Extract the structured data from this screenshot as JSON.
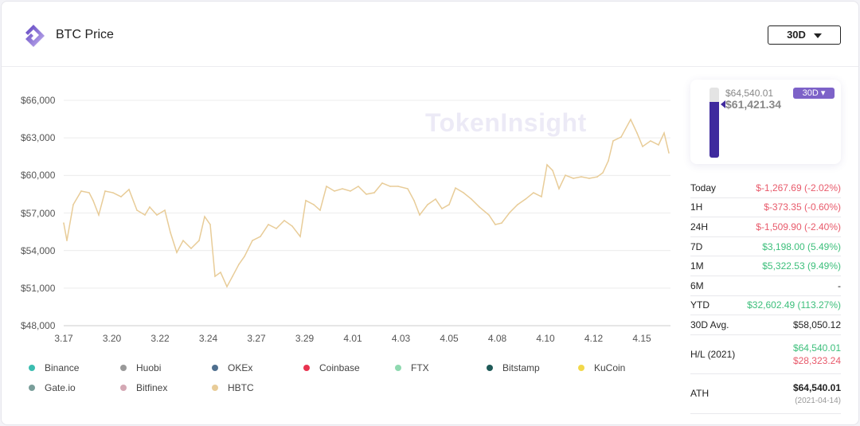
{
  "header": {
    "title": "BTC Price",
    "range": "30D",
    "logo": "tokeninsight-logo"
  },
  "watermark": "TokenInsight",
  "chart_data": {
    "type": "line",
    "title": "",
    "ylim": [
      48000,
      66000
    ],
    "y_ticks": [
      "$66,000",
      "$63,000",
      "$60,000",
      "$57,000",
      "$54,000",
      "$51,000",
      "$48,000"
    ],
    "x_ticks": [
      "3.17",
      "3.20",
      "3.22",
      "3.24",
      "3.27",
      "3.29",
      "4.01",
      "4.03",
      "4.05",
      "4.08",
      "4.10",
      "4.12",
      "4.15"
    ],
    "grid": "horizontal",
    "legend_position": "bottom",
    "series": [
      {
        "name": "HBTC",
        "color": "#e8cc98",
        "points": [
          [
            "03-17 00",
            56200
          ],
          [
            "03-17 04",
            54800
          ],
          [
            "03-17 12",
            57670
          ],
          [
            "03-17 22",
            58750
          ],
          [
            "03-18 08",
            58620
          ],
          [
            "03-18 13",
            57990
          ],
          [
            "03-18 20",
            56840
          ],
          [
            "03-19 04",
            58750
          ],
          [
            "03-19 14",
            58620
          ],
          [
            "03-20 00",
            58300
          ],
          [
            "03-20 10",
            58880
          ],
          [
            "03-20 20",
            57220
          ],
          [
            "03-21 06",
            56840
          ],
          [
            "03-21 12",
            57480
          ],
          [
            "03-21 21",
            56840
          ],
          [
            "03-22 07",
            57220
          ],
          [
            "03-22 14",
            55440
          ],
          [
            "03-22 22",
            53850
          ],
          [
            "03-23 06",
            54800
          ],
          [
            "03-23 16",
            54170
          ],
          [
            "03-24 02",
            54800
          ],
          [
            "03-24 09",
            56710
          ],
          [
            "03-24 16",
            56080
          ],
          [
            "03-24 22",
            51940
          ],
          [
            "03-25 05",
            52260
          ],
          [
            "03-25 13",
            51120
          ],
          [
            "03-25 20",
            51940
          ],
          [
            "03-26 04",
            52900
          ],
          [
            "03-26 11",
            53530
          ],
          [
            "03-26 21",
            54800
          ],
          [
            "03-27 07",
            55120
          ],
          [
            "03-27 17",
            56080
          ],
          [
            "03-28 03",
            55760
          ],
          [
            "03-28 13",
            56400
          ],
          [
            "03-28 23",
            55950
          ],
          [
            "03-29 09",
            55120
          ],
          [
            "03-29 16",
            58000
          ],
          [
            "03-30 02",
            57670
          ],
          [
            "03-30 10",
            57220
          ],
          [
            "03-30 18",
            59130
          ],
          [
            "03-31 04",
            58750
          ],
          [
            "03-31 14",
            58940
          ],
          [
            "04-01 00",
            58750
          ],
          [
            "04-01 10",
            59130
          ],
          [
            "04-01 20",
            58500
          ],
          [
            "04-02 06",
            58620
          ],
          [
            "04-02 16",
            59390
          ],
          [
            "04-03 02",
            59130
          ],
          [
            "04-03 12",
            59130
          ],
          [
            "04-04 00",
            58940
          ],
          [
            "04-04 08",
            57990
          ],
          [
            "04-04 15",
            56840
          ],
          [
            "04-05 01",
            57670
          ],
          [
            "04-05 11",
            58110
          ],
          [
            "04-05 19",
            57350
          ],
          [
            "04-06 04",
            57670
          ],
          [
            "04-06 12",
            59000
          ],
          [
            "04-06 22",
            58620
          ],
          [
            "04-07 08",
            58110
          ],
          [
            "04-07 18",
            57480
          ],
          [
            "04-08 06",
            56840
          ],
          [
            "04-08 14",
            56080
          ],
          [
            "04-08 22",
            56200
          ],
          [
            "04-09 08",
            57030
          ],
          [
            "04-09 18",
            57670
          ],
          [
            "04-10 04",
            58110
          ],
          [
            "04-10 14",
            58620
          ],
          [
            "04-11 00",
            58300
          ],
          [
            "04-11 07",
            60850
          ],
          [
            "04-11 14",
            60400
          ],
          [
            "04-11 22",
            58940
          ],
          [
            "04-12 06",
            60020
          ],
          [
            "04-12 16",
            59770
          ],
          [
            "04-13 02",
            59890
          ],
          [
            "04-13 12",
            59770
          ],
          [
            "04-13 22",
            59890
          ],
          [
            "04-14 05",
            60210
          ],
          [
            "04-14 12",
            61170
          ],
          [
            "04-14 18",
            62760
          ],
          [
            "04-15 04",
            63070
          ],
          [
            "04-15 16",
            64470
          ],
          [
            "04-16 00",
            63390
          ],
          [
            "04-16 07",
            62310
          ],
          [
            "04-16 17",
            62760
          ],
          [
            "04-17 03",
            62440
          ],
          [
            "04-17 10",
            63390
          ],
          [
            "04-17 16",
            61800
          ]
        ]
      }
    ]
  },
  "legend": [
    {
      "label": "Binance",
      "color": "#3bbdb0"
    },
    {
      "label": "Huobi",
      "color": "#999999"
    },
    {
      "label": "OKEx",
      "color": "#4f6f8f"
    },
    {
      "label": "Coinbase",
      "color": "#e8334f"
    },
    {
      "label": "FTX",
      "color": "#8fd9b0"
    },
    {
      "label": "Bitstamp",
      "color": "#1f5a58"
    },
    {
      "label": "KuCoin",
      "color": "#f2d84a"
    },
    {
      "label": "Gate.io",
      "color": "#7a9e9a"
    },
    {
      "label": "Bitfinex",
      "color": "#d4a8b4"
    },
    {
      "label": "HBTC",
      "color": "#e8cc98"
    }
  ],
  "gauge": {
    "max": "$64,540.01",
    "current": "$61,421.34",
    "range": "30D",
    "fill_fraction": 0.8,
    "color": "#3f2a9e"
  },
  "stats": [
    {
      "label": "Today",
      "value": "$-1,267.69 (-2.02%)",
      "tone": "red"
    },
    {
      "label": "1H",
      "value": "$-373.35 (-0.60%)",
      "tone": "red"
    },
    {
      "label": "24H",
      "value": "$-1,509.90 (-2.40%)",
      "tone": "red"
    },
    {
      "label": "7D",
      "value": "$3,198.00 (5.49%)",
      "tone": "green"
    },
    {
      "label": "1M",
      "value": "$5,322.53 (9.49%)",
      "tone": "green"
    },
    {
      "label": "6M",
      "value": "-",
      "tone": ""
    },
    {
      "label": "YTD",
      "value": "$32,602.49 (113.27%)",
      "tone": "green"
    },
    {
      "label": "30D Avg.",
      "value": "$58,050.12",
      "tone": ""
    }
  ],
  "hl": {
    "label": "H/L (2021)",
    "high": "$64,540.01",
    "low": "$28,323.24"
  },
  "ath": {
    "label": "ATH",
    "value": "$64,540.01",
    "date": "(2021-04-14)"
  }
}
